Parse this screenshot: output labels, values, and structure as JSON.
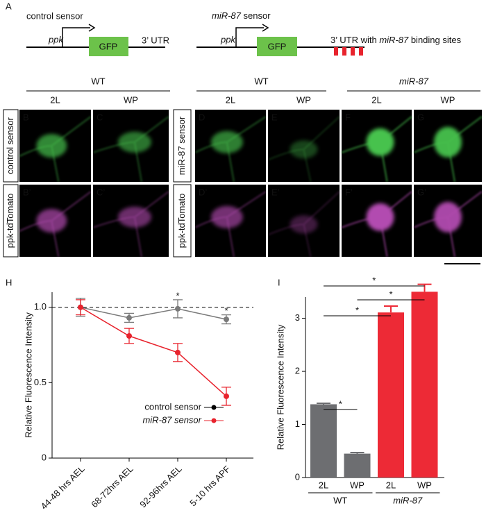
{
  "panel_a": {
    "label": "A",
    "control": {
      "title": "control sensor",
      "promoter": "ppk",
      "gene": "GFP",
      "utr": "3’ UTR"
    },
    "mir": {
      "title_gene": "miR-87",
      "title_rest": " sensor",
      "promoter": "ppk",
      "gene": "GFP",
      "utr": "3’ UTR with ",
      "utr_gene": "miR-87",
      "utr_rest": " binding sites"
    }
  },
  "micrographs": {
    "groups": [
      {
        "label": "WT",
        "columns": [
          "2L",
          "WP"
        ]
      },
      {
        "label": "WT",
        "columns": [
          "2L",
          "WP"
        ]
      },
      {
        "label": "miR-87",
        "columns": [
          "2L",
          "WP"
        ]
      }
    ],
    "row_labels": {
      "control": "control sensor",
      "mir": "miR-87 sensor",
      "tomato_left": "ppk-tdTomato",
      "tomato_right": "ppk-tdTomato"
    },
    "panels": [
      [
        "B",
        "C",
        "D",
        "E",
        "F",
        "G"
      ],
      [
        "B’",
        "C’",
        "D’",
        "E’",
        "F’",
        "G’"
      ]
    ]
  },
  "chart_data": [
    {
      "type": "line",
      "label": "H",
      "y_label": "Relative Fluorescence Intensity",
      "categories": [
        "44-48 hrs AEL",
        "68-72hrs AEL",
        "92-96hrs AEL",
        "5-10 hrs APF"
      ],
      "series": [
        {
          "name": "control sensor",
          "color": "#7a7a7a",
          "legend_color": "#000000",
          "values": [
            1.0,
            0.93,
            0.99,
            0.92
          ],
          "errors": [
            0.06,
            0.03,
            0.06,
            0.03
          ],
          "annotations": [
            null,
            null,
            "*",
            "*"
          ]
        },
        {
          "name": "miR-87 sensor",
          "color": "#e8232d",
          "values": [
            1.0,
            0.81,
            0.7,
            0.41
          ],
          "errors": [
            0.05,
            0.05,
            0.06,
            0.06
          ]
        }
      ],
      "reference_line": 1.0,
      "ylim": [
        0,
        1.1
      ],
      "yticks": [
        0,
        0.5,
        {
          "value": 1,
          "label": "1.0"
        }
      ],
      "legend": "center"
    },
    {
      "type": "bar",
      "label": "I",
      "y_label": "Relative Fluorescence Intensity",
      "categories": [
        "2L",
        "WP",
        "2L",
        "WP"
      ],
      "values": [
        1.38,
        0.45,
        3.11,
        3.5
      ],
      "errors": [
        0.02,
        0.02,
        0.12,
        0.14
      ],
      "colors": [
        "#6d6e71",
        "#6d6e71",
        "#ed2a36",
        "#ed2a36"
      ],
      "groups": [
        {
          "label": "WT",
          "span": [
            0,
            1
          ],
          "color": "#000000"
        },
        {
          "label": "miR-87",
          "span": [
            2,
            3
          ],
          "color": "#ed2a36"
        }
      ],
      "significance": [
        {
          "from": 0,
          "to": 3,
          "label": "*"
        },
        {
          "from": 1,
          "to": 3,
          "label": "*"
        },
        {
          "from": 0,
          "to": 2,
          "label": "*"
        },
        {
          "from": 0,
          "to": 1,
          "label": "*"
        }
      ],
      "ylim": [
        0,
        3.4
      ],
      "yticks": [
        0,
        1,
        2,
        3
      ]
    }
  ]
}
